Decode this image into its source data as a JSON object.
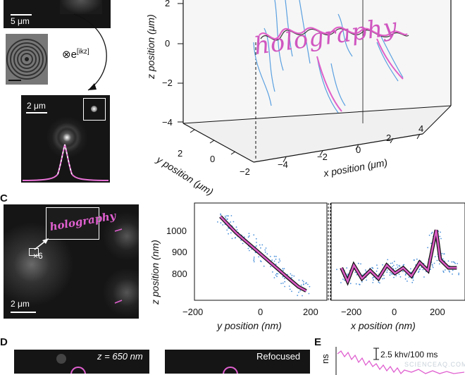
{
  "panel_letters": {
    "c": "C",
    "d": "D",
    "e": "E"
  },
  "panel_top_left": {
    "scale_bar_1": "5 μm",
    "operator": "⊗e",
    "operator_exp": "[ikz]",
    "scale_bar_2": "2 μm"
  },
  "panel_3d": {
    "z_axis_label": "z position (μm)",
    "z_ticks": [
      "2",
      "0",
      "−2",
      "−4"
    ],
    "y_axis_label": "y position (μm)",
    "y_ticks": [
      "2",
      "0",
      "−2"
    ],
    "x_axis_label": "x position (μm)",
    "x_ticks": [
      "−4",
      "−2",
      "0",
      "2",
      "4"
    ],
    "handwriting": "holography"
  },
  "panel_c": {
    "inset_text": "holography",
    "zoom_label": "×6",
    "scale_bar": "2 μm",
    "z_axis_label": "z position (nm)",
    "y_axis_label": "y position (nm)",
    "x_axis_label": "x position (nm)",
    "z_ticks": [
      "1000",
      "900",
      "800"
    ],
    "y_ticks": [
      "−200",
      "0",
      "200"
    ],
    "x_ticks": [
      "−200",
      "0",
      "200"
    ]
  },
  "panel_d": {
    "label_left": "z = 650 nm",
    "label_right": "Refocused"
  },
  "panel_e": {
    "scale_label": "2.5 khv/100 ms",
    "axis_fragment": "ns"
  },
  "watermark": "SCIENCEAQ.COM",
  "chart_data": [
    {
      "type": "scatter",
      "title": "",
      "xlabel": "y position (nm)",
      "ylabel": "z position (nm)",
      "xlim": [
        -250,
        260
      ],
      "ylim": [
        750,
        1110
      ],
      "series": [
        {
          "points": [
            [
              -150,
              1060
            ],
            [
              -120,
              1030
            ],
            [
              -90,
              1000
            ],
            [
              -60,
              975
            ],
            [
              -30,
              950
            ],
            [
              0,
              925
            ],
            [
              30,
              900
            ],
            [
              60,
              875
            ],
            [
              90,
              850
            ],
            [
              120,
              825
            ],
            [
              150,
              800
            ],
            [
              180,
              785
            ]
          ]
        }
      ]
    },
    {
      "type": "scatter",
      "title": "",
      "xlabel": "x position (nm)",
      "ylabel": "",
      "xlim": [
        -330,
        320
      ],
      "ylim": [
        750,
        1110
      ],
      "series": [
        {
          "points": [
            [
              -280,
              870
            ],
            [
              -250,
              820
            ],
            [
              -220,
              880
            ],
            [
              -180,
              830
            ],
            [
              -140,
              860
            ],
            [
              -100,
              830
            ],
            [
              -60,
              880
            ],
            [
              -20,
              850
            ],
            [
              20,
              870
            ],
            [
              60,
              840
            ],
            [
              100,
              890
            ],
            [
              140,
              860
            ],
            [
              180,
              1010
            ],
            [
              200,
              900
            ],
            [
              240,
              870
            ],
            [
              280,
              870
            ]
          ]
        }
      ]
    }
  ]
}
